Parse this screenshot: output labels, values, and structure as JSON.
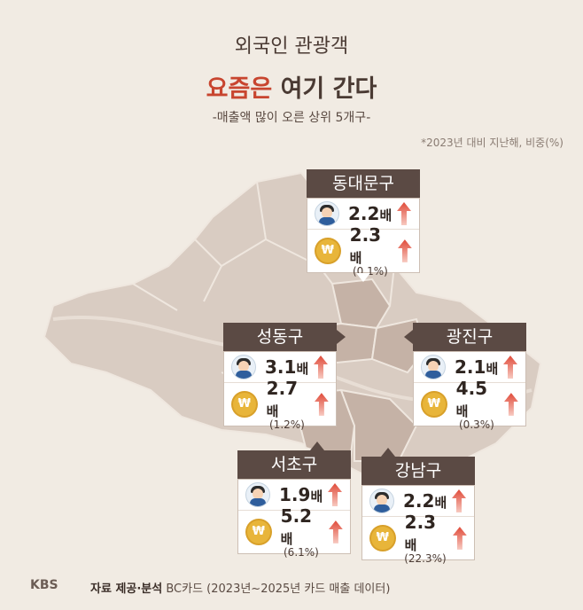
{
  "title": {
    "line1": "외국인 관광객",
    "line2_highlight": "요즘은",
    "line2_rest": " 여기 간다"
  },
  "subtitle": "-매출액 많이 오른 상위 5개구-",
  "note": "*2023년 대비 지난해, 비중(%)",
  "colors": {
    "accent": "#c8452f",
    "card_header": "#5b4a44",
    "map_base": "#d9ccc2",
    "map_highlight": "#c5b2a6"
  },
  "districts": [
    {
      "name": "동대문구",
      "visitors": "2.2",
      "sales": "2.3",
      "unit": "배",
      "share": "(0.1%)"
    },
    {
      "name": "성동구",
      "visitors": "3.1",
      "sales": "2.7",
      "unit": "배",
      "share": "(1.2%)"
    },
    {
      "name": "광진구",
      "visitors": "2.1",
      "sales": "4.5",
      "unit": "배",
      "share": "(0.3%)"
    },
    {
      "name": "서초구",
      "visitors": "1.9",
      "sales": "5.2",
      "unit": "배",
      "share": "(6.1%)"
    },
    {
      "name": "강남구",
      "visitors": "2.2",
      "sales": "2.3",
      "unit": "배",
      "share": "(22.3%)"
    }
  ],
  "icons": {
    "visitor": "tourist-icon",
    "sales": "won-coin-icon",
    "increase": "up-arrow-icon"
  },
  "coin_symbol": "₩",
  "footer": {
    "logo": "KBS",
    "label": "자료 제공·분석",
    "text": " BC카드 (2023년~2025년 카드 매출 데이터)"
  }
}
